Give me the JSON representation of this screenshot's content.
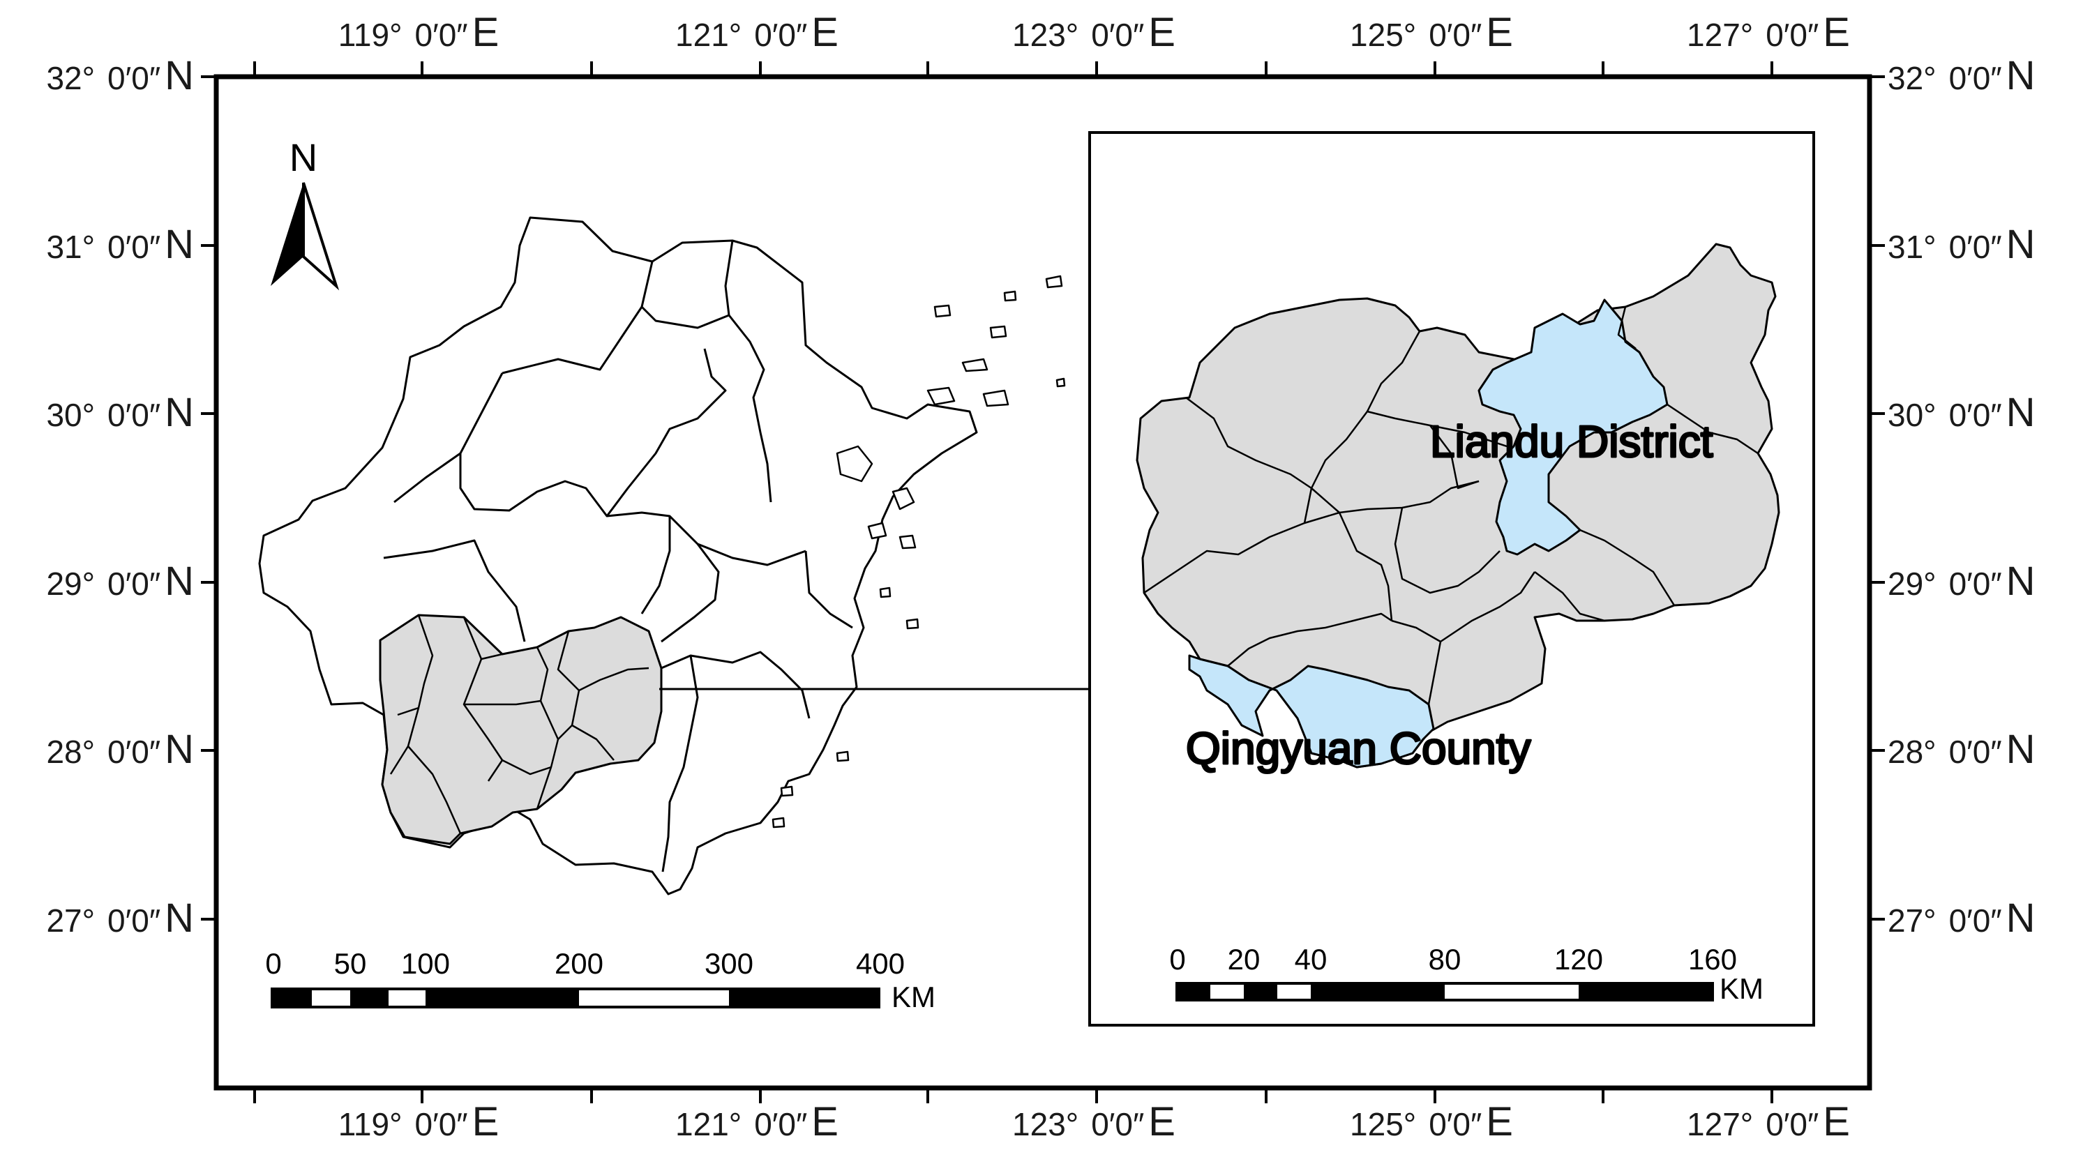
{
  "map": {
    "longitude_labels": [
      {
        "deg": "119°",
        "min_sec": "0′0″",
        "hemi": "E"
      },
      {
        "deg": "121°",
        "min_sec": "0′0″",
        "hemi": "E"
      },
      {
        "deg": "123°",
        "min_sec": "0′0″",
        "hemi": "E"
      },
      {
        "deg": "125°",
        "min_sec": "0′0″",
        "hemi": "E"
      },
      {
        "deg": "127°",
        "min_sec": "0′0″",
        "hemi": "E"
      }
    ],
    "latitude_labels": [
      {
        "deg": "32°",
        "min_sec": "0′0″",
        "hemi": "N"
      },
      {
        "deg": "31°",
        "min_sec": "0′0″",
        "hemi": "N"
      },
      {
        "deg": "30°",
        "min_sec": "0′0″",
        "hemi": "N"
      },
      {
        "deg": "29°",
        "min_sec": "0′0″",
        "hemi": "N"
      },
      {
        "deg": "28°",
        "min_sec": "0′0″",
        "hemi": "N"
      },
      {
        "deg": "27°",
        "min_sec": "0′0″",
        "hemi": "N"
      }
    ],
    "north_arrow_label": "N",
    "main_scale": {
      "ticks": [
        "0",
        "50",
        "100",
        "200",
        "300",
        "400"
      ],
      "unit": "KM"
    },
    "inset_scale": {
      "ticks": [
        "0",
        "20",
        "40",
        "80",
        "120",
        "160"
      ],
      "unit": "KM"
    },
    "inset_labels": {
      "liandu": "Liandu District",
      "qingyuan": "Qingyuan County"
    },
    "colors": {
      "highlight": "#c5e6fa",
      "region_fill": "#dcdcdc",
      "province_fill": "#ffffff",
      "line": "#000000"
    }
  }
}
